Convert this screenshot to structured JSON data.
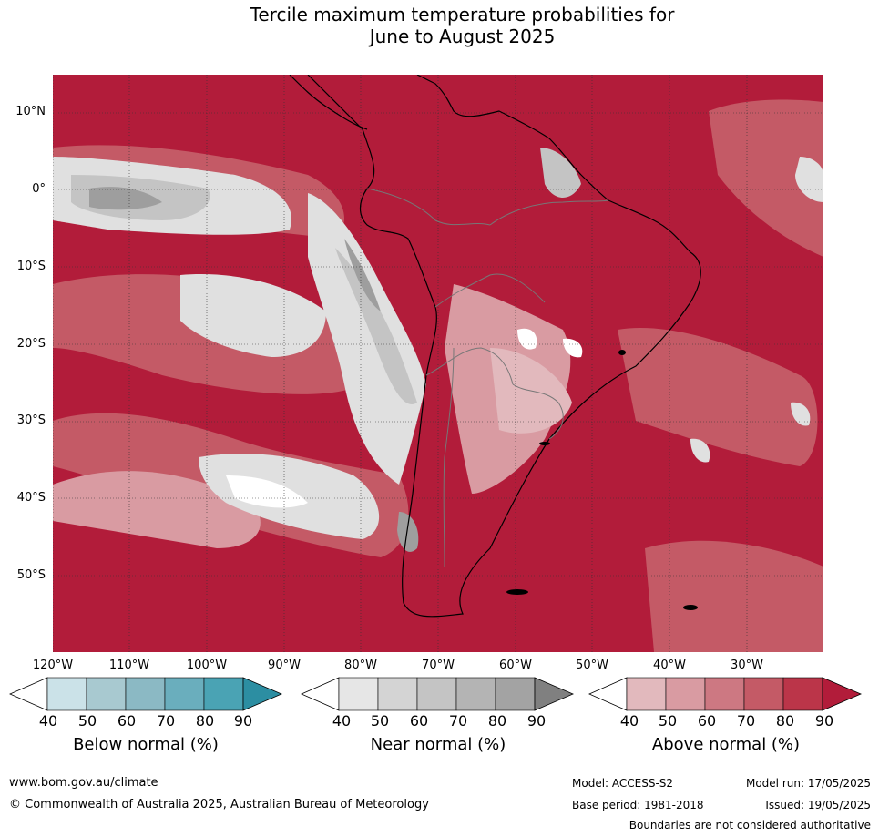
{
  "title_line1": "Tercile maximum temperature probabilities for",
  "title_line2": "June to August 2025",
  "lat_labels": [
    "10°N",
    "0°",
    "10°S",
    "20°S",
    "30°S",
    "40°S",
    "50°S"
  ],
  "lon_labels": [
    "120°W",
    "110°W",
    "100°W",
    "90°W",
    "80°W",
    "70°W",
    "60°W",
    "50°W",
    "40°W",
    "30°W"
  ],
  "colorbars": [
    {
      "title": "Below normal (%)",
      "ticks": [
        "40",
        "50",
        "60",
        "70",
        "80",
        "90"
      ],
      "colors": [
        "#ffffff",
        "#cbe2e8",
        "#a8c9d0",
        "#8bb9c4",
        "#6aaebd",
        "#4aa3b4",
        "#2c8ea2"
      ]
    },
    {
      "title": "Near normal (%)",
      "ticks": [
        "40",
        "50",
        "60",
        "70",
        "80",
        "90"
      ],
      "colors": [
        "#ffffff",
        "#e6e6e6",
        "#d4d4d4",
        "#c4c4c4",
        "#b4b4b4",
        "#a3a3a3",
        "#808080"
      ]
    },
    {
      "title": "Above normal (%)",
      "ticks": [
        "40",
        "50",
        "60",
        "70",
        "80",
        "90"
      ],
      "colors": [
        "#ffffff",
        "#e2b9bd",
        "#d99ba2",
        "#cd7882",
        "#c45a66",
        "#bb3549",
        "#b21c3a"
      ]
    }
  ],
  "footer": {
    "website": "www.bom.gov.au/climate",
    "copyright": "© Commonwealth of Australia 2025, Australian Bureau of Meteorology",
    "model": "Model: ACCESS-S2",
    "base_period": "Base period: 1981-2018",
    "model_run": "Model run: 17/05/2025",
    "issued": "Issued: 19/05/2025",
    "disclaimer": "Boundaries are not considered authoritative"
  },
  "colors": {
    "above_dark": "#b21c3a",
    "above_mid": "#c45a66",
    "above_light": "#d99ba2",
    "above_pale": "#e2b9bd",
    "near_light": "#e0e0e0",
    "near_mid": "#c4c4c4",
    "near_dark": "#9e9e9e"
  }
}
